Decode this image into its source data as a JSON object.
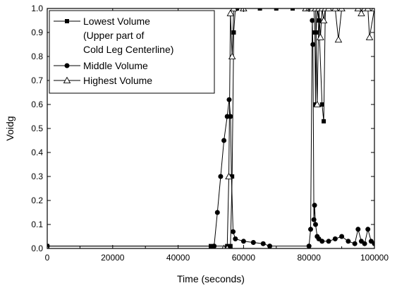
{
  "chart_data": {
    "type": "line",
    "xlabel": "Time (seconds)",
    "ylabel": "Voidg",
    "xlim": [
      0,
      100000
    ],
    "ylim": [
      0.0,
      1.0
    ],
    "x_ticks": [
      "0",
      "20000",
      "40000",
      "60000",
      "80000",
      "100000"
    ],
    "y_ticks": [
      "0.0",
      "0.1",
      "0.2",
      "0.3",
      "0.4",
      "0.5",
      "0.6",
      "0.7",
      "0.8",
      "0.9",
      "1.0"
    ],
    "grid": false,
    "legend_position": "top-left",
    "series": [
      {
        "name": "Lowest  Volume",
        "name_lines": [
          "Lowest  Volume",
          "(Upper part of",
          " Cold Leg Centerline)"
        ],
        "marker": "square-filled",
        "x": [
          0,
          50000,
          55000,
          56000,
          56500,
          57000,
          57500,
          58000,
          60000,
          65000,
          70000,
          75000,
          80000,
          81000,
          81500,
          81800,
          82000,
          82200,
          82500,
          83000,
          84000,
          84500,
          85000,
          90000,
          100000
        ],
        "y": [
          0.01,
          0.01,
          0.01,
          0.01,
          0.3,
          0.9,
          1.0,
          1.0,
          1.0,
          1.0,
          1.0,
          1.0,
          1.0,
          1.0,
          1.0,
          0.9,
          0.6,
          0.9,
          1.0,
          0.95,
          0.6,
          0.53,
          1.0,
          1.0,
          1.0
        ]
      },
      {
        "name": "Middle Volume",
        "marker": "circle-filled",
        "x": [
          0,
          51000,
          52000,
          53000,
          54000,
          55000,
          55600,
          56000,
          56300,
          56800,
          57500,
          60000,
          63000,
          66000,
          68000,
          80000,
          80500,
          81000,
          81200,
          81500,
          81700,
          82000,
          82500,
          83000,
          84000,
          86000,
          88000,
          90000,
          92000,
          94000,
          95000,
          96000,
          97000,
          98000,
          99000,
          100000
        ],
        "y": [
          0.01,
          0.01,
          0.15,
          0.3,
          0.45,
          0.55,
          0.62,
          0.55,
          0.3,
          0.07,
          0.04,
          0.03,
          0.025,
          0.02,
          0.01,
          0.01,
          0.08,
          0.95,
          0.85,
          0.12,
          0.18,
          0.1,
          0.05,
          0.04,
          0.03,
          0.03,
          0.04,
          0.05,
          0.03,
          0.02,
          0.08,
          0.03,
          0.02,
          0.08,
          0.03,
          0.02
        ]
      },
      {
        "name": "Highest Volume",
        "marker": "triangle-open",
        "x": [
          0,
          54000,
          55000,
          55500,
          56000,
          56500,
          57000,
          60000,
          79000,
          80000,
          80500,
          81000,
          82000,
          82500,
          83000,
          83500,
          84000,
          84500,
          85000,
          86000,
          88000,
          89000,
          90000,
          95000,
          96000,
          97000,
          98000,
          98500,
          100000
        ],
        "y": [
          0.0,
          0.0,
          0.0,
          0.3,
          0.98,
          0.8,
          1.0,
          1.0,
          1.0,
          1.0,
          1.0,
          1.0,
          1.0,
          0.6,
          1.0,
          0.88,
          1.0,
          0.95,
          1.0,
          1.0,
          1.0,
          0.87,
          1.0,
          1.0,
          0.98,
          1.0,
          1.0,
          0.88,
          1.0
        ]
      }
    ]
  }
}
